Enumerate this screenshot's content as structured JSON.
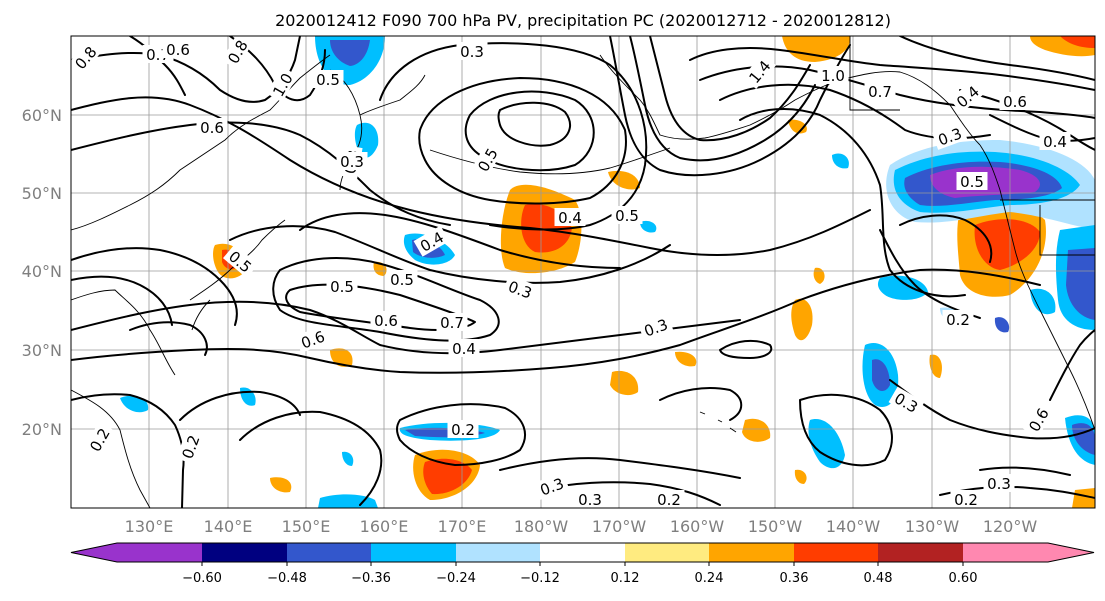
{
  "title": "2020012412 F090 700 hPa PV, precipitation PC (2020012712 - 2020012812)",
  "lat_labels": [
    "20°N",
    "30°N",
    "40°N",
    "50°N",
    "60°N"
  ],
  "lon_labels": [
    "130°E",
    "140°E",
    "150°E",
    "160°E",
    "170°E",
    "180°W",
    "170°W",
    "160°W",
    "150°W",
    "140°W",
    "130°W",
    "120°W"
  ],
  "colorbar": {
    "ticks": [
      "−0.60",
      "−0.48",
      "−0.36",
      "−0.24",
      "−0.12",
      "0.12",
      "0.24",
      "0.36",
      "0.48",
      "0.60"
    ],
    "colors": [
      "#9933cc",
      "#000080",
      "#3357cc",
      "#00bfff",
      "#b0e2ff",
      "#ffffff",
      "#ffeb80",
      "#ffa500",
      "#ff3d00",
      "#b22222",
      "#ff88b0"
    ]
  },
  "contour_labels": [
    {
      "text": "0.8"
    },
    {
      "text": "0.7"
    },
    {
      "text": "0.6"
    },
    {
      "text": "0.8"
    },
    {
      "text": "1.0"
    },
    {
      "text": "0.5"
    },
    {
      "text": "0.3"
    },
    {
      "text": "0.6"
    },
    {
      "text": "0.3"
    },
    {
      "text": "0.3"
    },
    {
      "text": "0.5"
    },
    {
      "text": "1.4"
    },
    {
      "text": "1.0"
    },
    {
      "text": "0.7"
    },
    {
      "text": "0.4"
    },
    {
      "text": "0.6"
    },
    {
      "text": "0.3"
    },
    {
      "text": "0.4"
    },
    {
      "text": "0.5"
    },
    {
      "text": "0.4"
    },
    {
      "text": "0.4"
    },
    {
      "text": "0.5"
    },
    {
      "text": "0.5"
    },
    {
      "text": "0.3"
    },
    {
      "text": "0.5"
    },
    {
      "text": "0.6"
    },
    {
      "text": "0.7"
    },
    {
      "text": "0.6"
    },
    {
      "text": "0.4"
    },
    {
      "text": "0.3"
    },
    {
      "text": "0.2"
    },
    {
      "text": "0.3"
    },
    {
      "text": "0.2"
    },
    {
      "text": "0.2"
    },
    {
      "text": "0.3"
    },
    {
      "text": "0.3"
    },
    {
      "text": "0.2"
    },
    {
      "text": "0.2"
    },
    {
      "text": "0.3"
    },
    {
      "text": "0.6"
    },
    {
      "text": "0.5"
    },
    {
      "text": "0.2"
    }
  ]
}
